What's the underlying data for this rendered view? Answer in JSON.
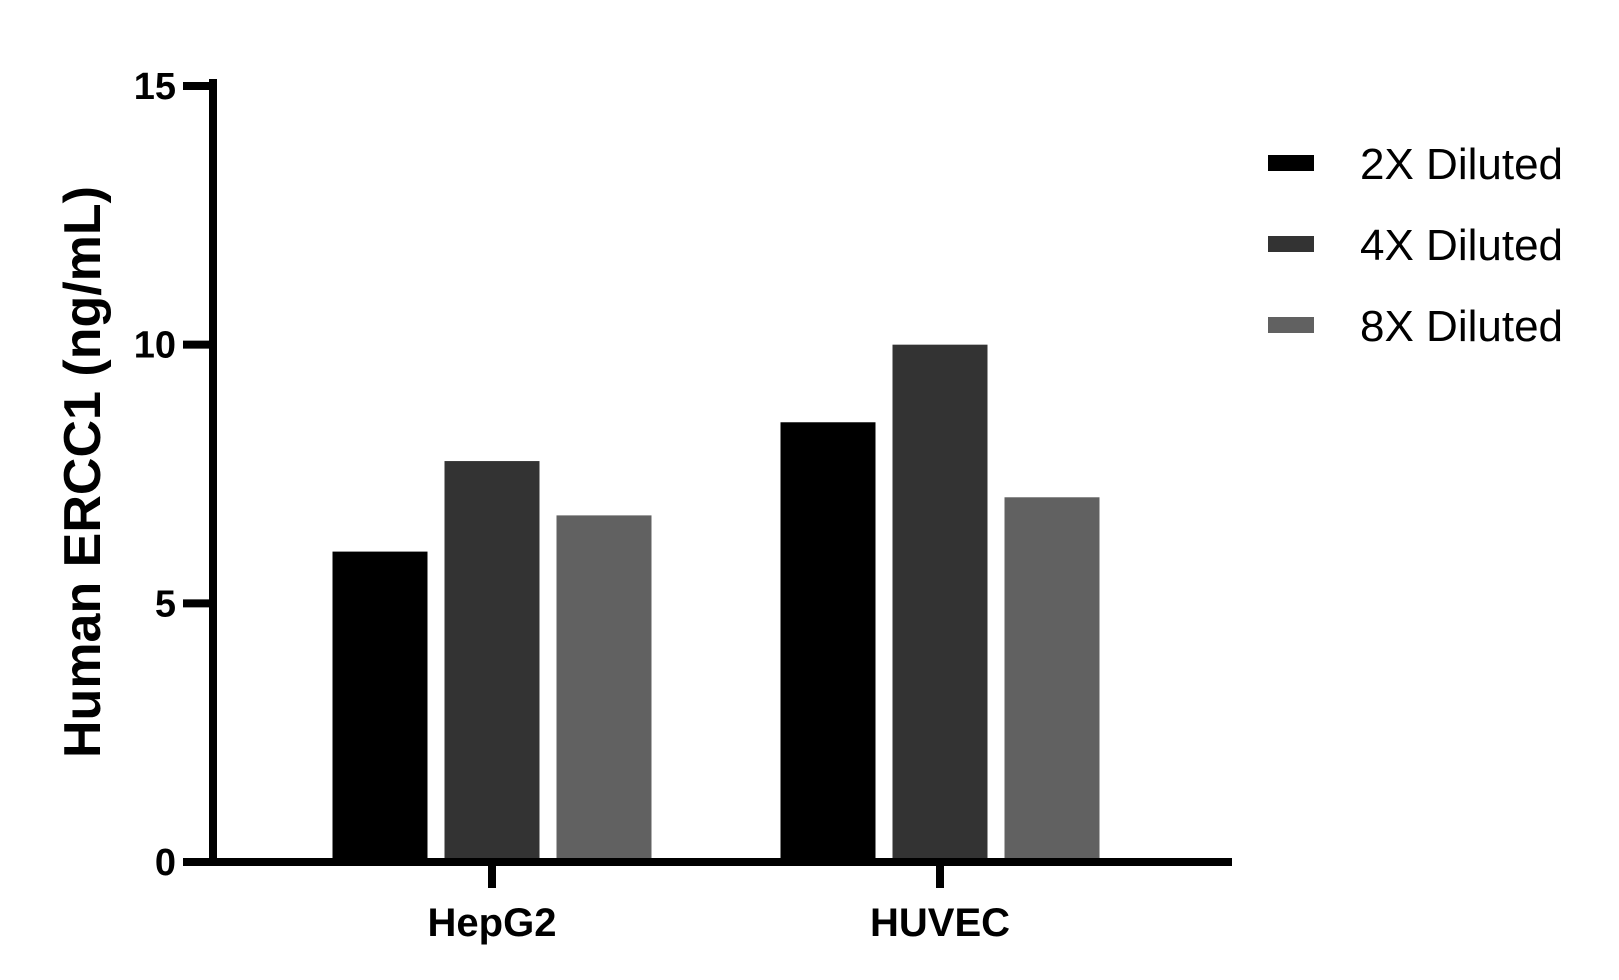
{
  "chart_data": {
    "type": "bar",
    "categories": [
      "HepG2",
      "HUVEC"
    ],
    "series": [
      {
        "name": "2X Diluted",
        "values": [
          6.0,
          8.5
        ],
        "color": "#000000"
      },
      {
        "name": "4X Diluted",
        "values": [
          7.75,
          10.0
        ],
        "color": "#333333"
      },
      {
        "name": "8X Diluted",
        "values": [
          6.7,
          7.05
        ],
        "color": "#616161"
      }
    ],
    "title": "",
    "xlabel": "",
    "ylabel": "Human ERCC1 (ng/mL)",
    "ylim": [
      0,
      15
    ],
    "yticks": [
      0,
      5,
      10,
      15
    ],
    "ytick_labels": [
      "0",
      "5",
      "10",
      "15"
    ],
    "grid": false,
    "legend_position": "top-right"
  }
}
